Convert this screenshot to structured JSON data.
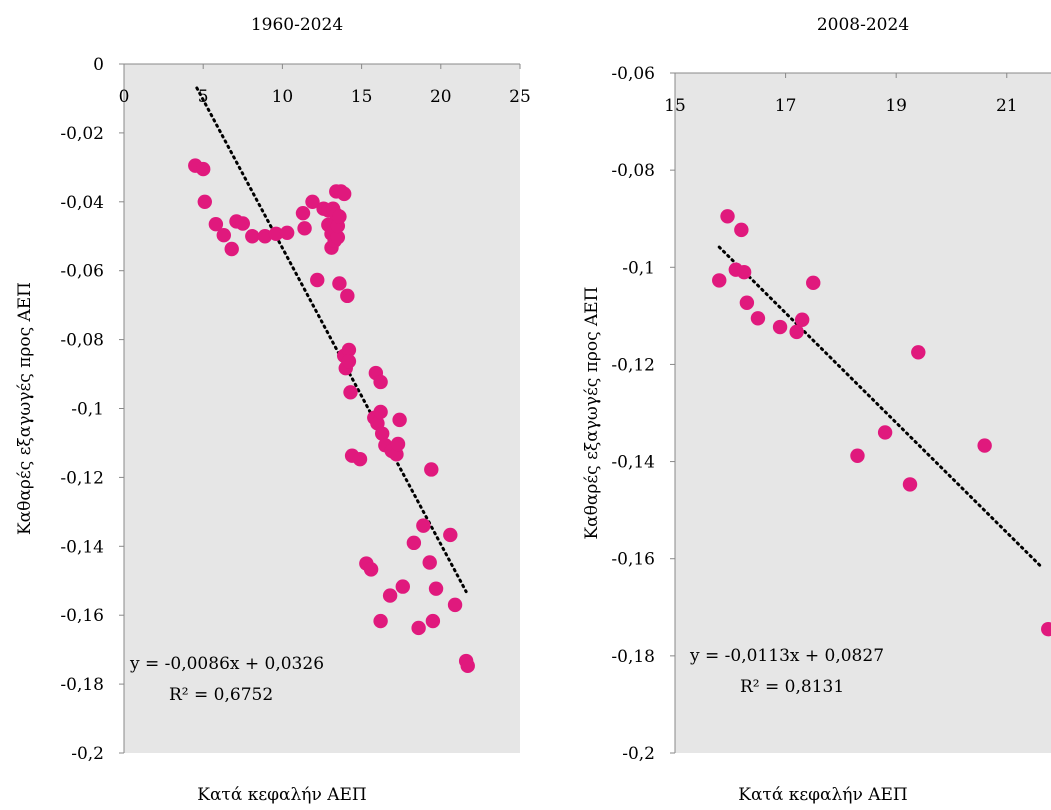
{
  "chart_data": [
    {
      "type": "scatter",
      "title": "1960-2024",
      "xlabel": "Κατά κεφαλήν ΑΕΠ",
      "ylabel": "Καθαρές εξαγωγές προς ΑΕΠ",
      "xlim": [
        0,
        25
      ],
      "ylim": [
        -0.2,
        0
      ],
      "x_ticks": [
        0,
        5,
        10,
        15,
        20,
        25
      ],
      "y_ticks": [
        0,
        -0.02,
        -0.04,
        -0.06,
        -0.08,
        -0.1,
        -0.12,
        -0.14,
        -0.16,
        -0.18,
        -0.2
      ],
      "x_tick_labels": [
        "0",
        "5",
        "10",
        "15",
        "20",
        "25"
      ],
      "y_tick_labels": [
        "0",
        "-0,02",
        "-0,04",
        "-0,06",
        "-0,08",
        "-0,1",
        "-0,12",
        "-0,14",
        "-0,16",
        "-0,18",
        "-0,2"
      ],
      "x_axis_position": "top",
      "background": "#e6e6e6",
      "marker_color": "#e0197d",
      "trendline": {
        "slope": -0.0086,
        "intercept": 0.0326,
        "x_range": [
          4.6,
          21.6
        ],
        "style": "dotted"
      },
      "equation_label": "y = -0,0086x + 0,0326",
      "r2_label": "R² = 0,6752",
      "points": [
        [
          4.5,
          -0.0295
        ],
        [
          5.0,
          -0.0305
        ],
        [
          5.1,
          -0.04
        ],
        [
          5.8,
          -0.0465
        ],
        [
          6.3,
          -0.0497
        ],
        [
          6.8,
          -0.0537
        ],
        [
          7.1,
          -0.0457
        ],
        [
          7.5,
          -0.0463
        ],
        [
          8.1,
          -0.05
        ],
        [
          8.9,
          -0.05
        ],
        [
          9.6,
          -0.0493
        ],
        [
          10.3,
          -0.049
        ],
        [
          11.3,
          -0.0433
        ],
        [
          11.4,
          -0.0477
        ],
        [
          11.9,
          -0.04
        ],
        [
          12.2,
          -0.0627
        ],
        [
          12.6,
          -0.042
        ],
        [
          12.9,
          -0.0425
        ],
        [
          12.9,
          -0.0467
        ],
        [
          13.1,
          -0.0493
        ],
        [
          13.1,
          -0.0533
        ],
        [
          13.3,
          -0.0513
        ],
        [
          13.2,
          -0.042
        ],
        [
          13.4,
          -0.037
        ],
        [
          13.4,
          -0.0437
        ],
        [
          13.5,
          -0.0503
        ],
        [
          13.5,
          -0.047
        ],
        [
          13.6,
          -0.0443
        ],
        [
          13.6,
          -0.0637
        ],
        [
          13.7,
          -0.037
        ],
        [
          13.9,
          -0.0377
        ],
        [
          13.9,
          -0.0847
        ],
        [
          14.0,
          -0.0883
        ],
        [
          14.1,
          -0.0673
        ],
        [
          14.2,
          -0.083
        ],
        [
          14.2,
          -0.0863
        ],
        [
          14.3,
          -0.0953
        ],
        [
          14.4,
          -0.1137
        ],
        [
          14.9,
          -0.1147
        ],
        [
          15.3,
          -0.145
        ],
        [
          15.6,
          -0.1467
        ],
        [
          15.8,
          -0.1027
        ],
        [
          15.9,
          -0.0897
        ],
        [
          16.0,
          -0.1043
        ],
        [
          16.2,
          -0.101
        ],
        [
          16.2,
          -0.1617
        ],
        [
          16.2,
          -0.0923
        ],
        [
          16.3,
          -0.1073
        ],
        [
          16.5,
          -0.1107
        ],
        [
          16.8,
          -0.1543
        ],
        [
          16.9,
          -0.1123
        ],
        [
          17.2,
          -0.1133
        ],
        [
          17.3,
          -0.1103
        ],
        [
          17.4,
          -0.1033
        ],
        [
          17.6,
          -0.1517
        ],
        [
          18.3,
          -0.139
        ],
        [
          18.6,
          -0.1637
        ],
        [
          18.9,
          -0.134
        ],
        [
          19.3,
          -0.1447
        ],
        [
          19.4,
          -0.1177
        ],
        [
          19.5,
          -0.1617
        ],
        [
          19.7,
          -0.1523
        ],
        [
          20.6,
          -0.1367
        ],
        [
          20.9,
          -0.157
        ],
        [
          21.6,
          -0.1733
        ],
        [
          21.7,
          -0.1747
        ]
      ]
    },
    {
      "type": "scatter",
      "title": "2008-2024",
      "xlabel": "Κατά κεφαλήν ΑΕΠ",
      "ylabel": "Καθαρές εξαγωγές προς ΑΕΠ",
      "xlim": [
        15,
        21.8
      ],
      "ylim": [
        -0.2,
        -0.06
      ],
      "x_ticks": [
        15,
        17,
        19,
        21
      ],
      "y_ticks": [
        -0.06,
        -0.08,
        -0.1,
        -0.12,
        -0.14,
        -0.16,
        -0.18,
        -0.2
      ],
      "x_tick_labels": [
        "15",
        "17",
        "19",
        "21"
      ],
      "y_tick_labels": [
        "-0,06",
        "-0,08",
        "-0,1",
        "-0,12",
        "-0,14",
        "-0,16",
        "-0,18",
        "-0,2"
      ],
      "x_axis_position": "top",
      "background": "#e6e6e6",
      "marker_color": "#e0197d",
      "trendline": {
        "slope": -0.0113,
        "intercept": 0.0827,
        "x_range": [
          15.8,
          21.6
        ],
        "style": "dotted"
      },
      "equation_label": "y = -0,0113x + 0,0827",
      "r2_label": "R² = 0,8131",
      "points": [
        [
          15.8,
          -0.1027
        ],
        [
          15.95,
          -0.0895
        ],
        [
          16.1,
          -0.1005
        ],
        [
          16.2,
          -0.0923
        ],
        [
          16.25,
          -0.101
        ],
        [
          16.3,
          -0.1073
        ],
        [
          16.5,
          -0.1105
        ],
        [
          16.9,
          -0.1123
        ],
        [
          17.2,
          -0.1133
        ],
        [
          17.3,
          -0.1108
        ],
        [
          17.5,
          -0.1032
        ],
        [
          18.3,
          -0.1388
        ],
        [
          18.8,
          -0.134
        ],
        [
          19.25,
          -0.1447
        ],
        [
          19.4,
          -0.1175
        ],
        [
          20.6,
          -0.1367
        ],
        [
          21.75,
          -0.1745
        ]
      ]
    }
  ]
}
